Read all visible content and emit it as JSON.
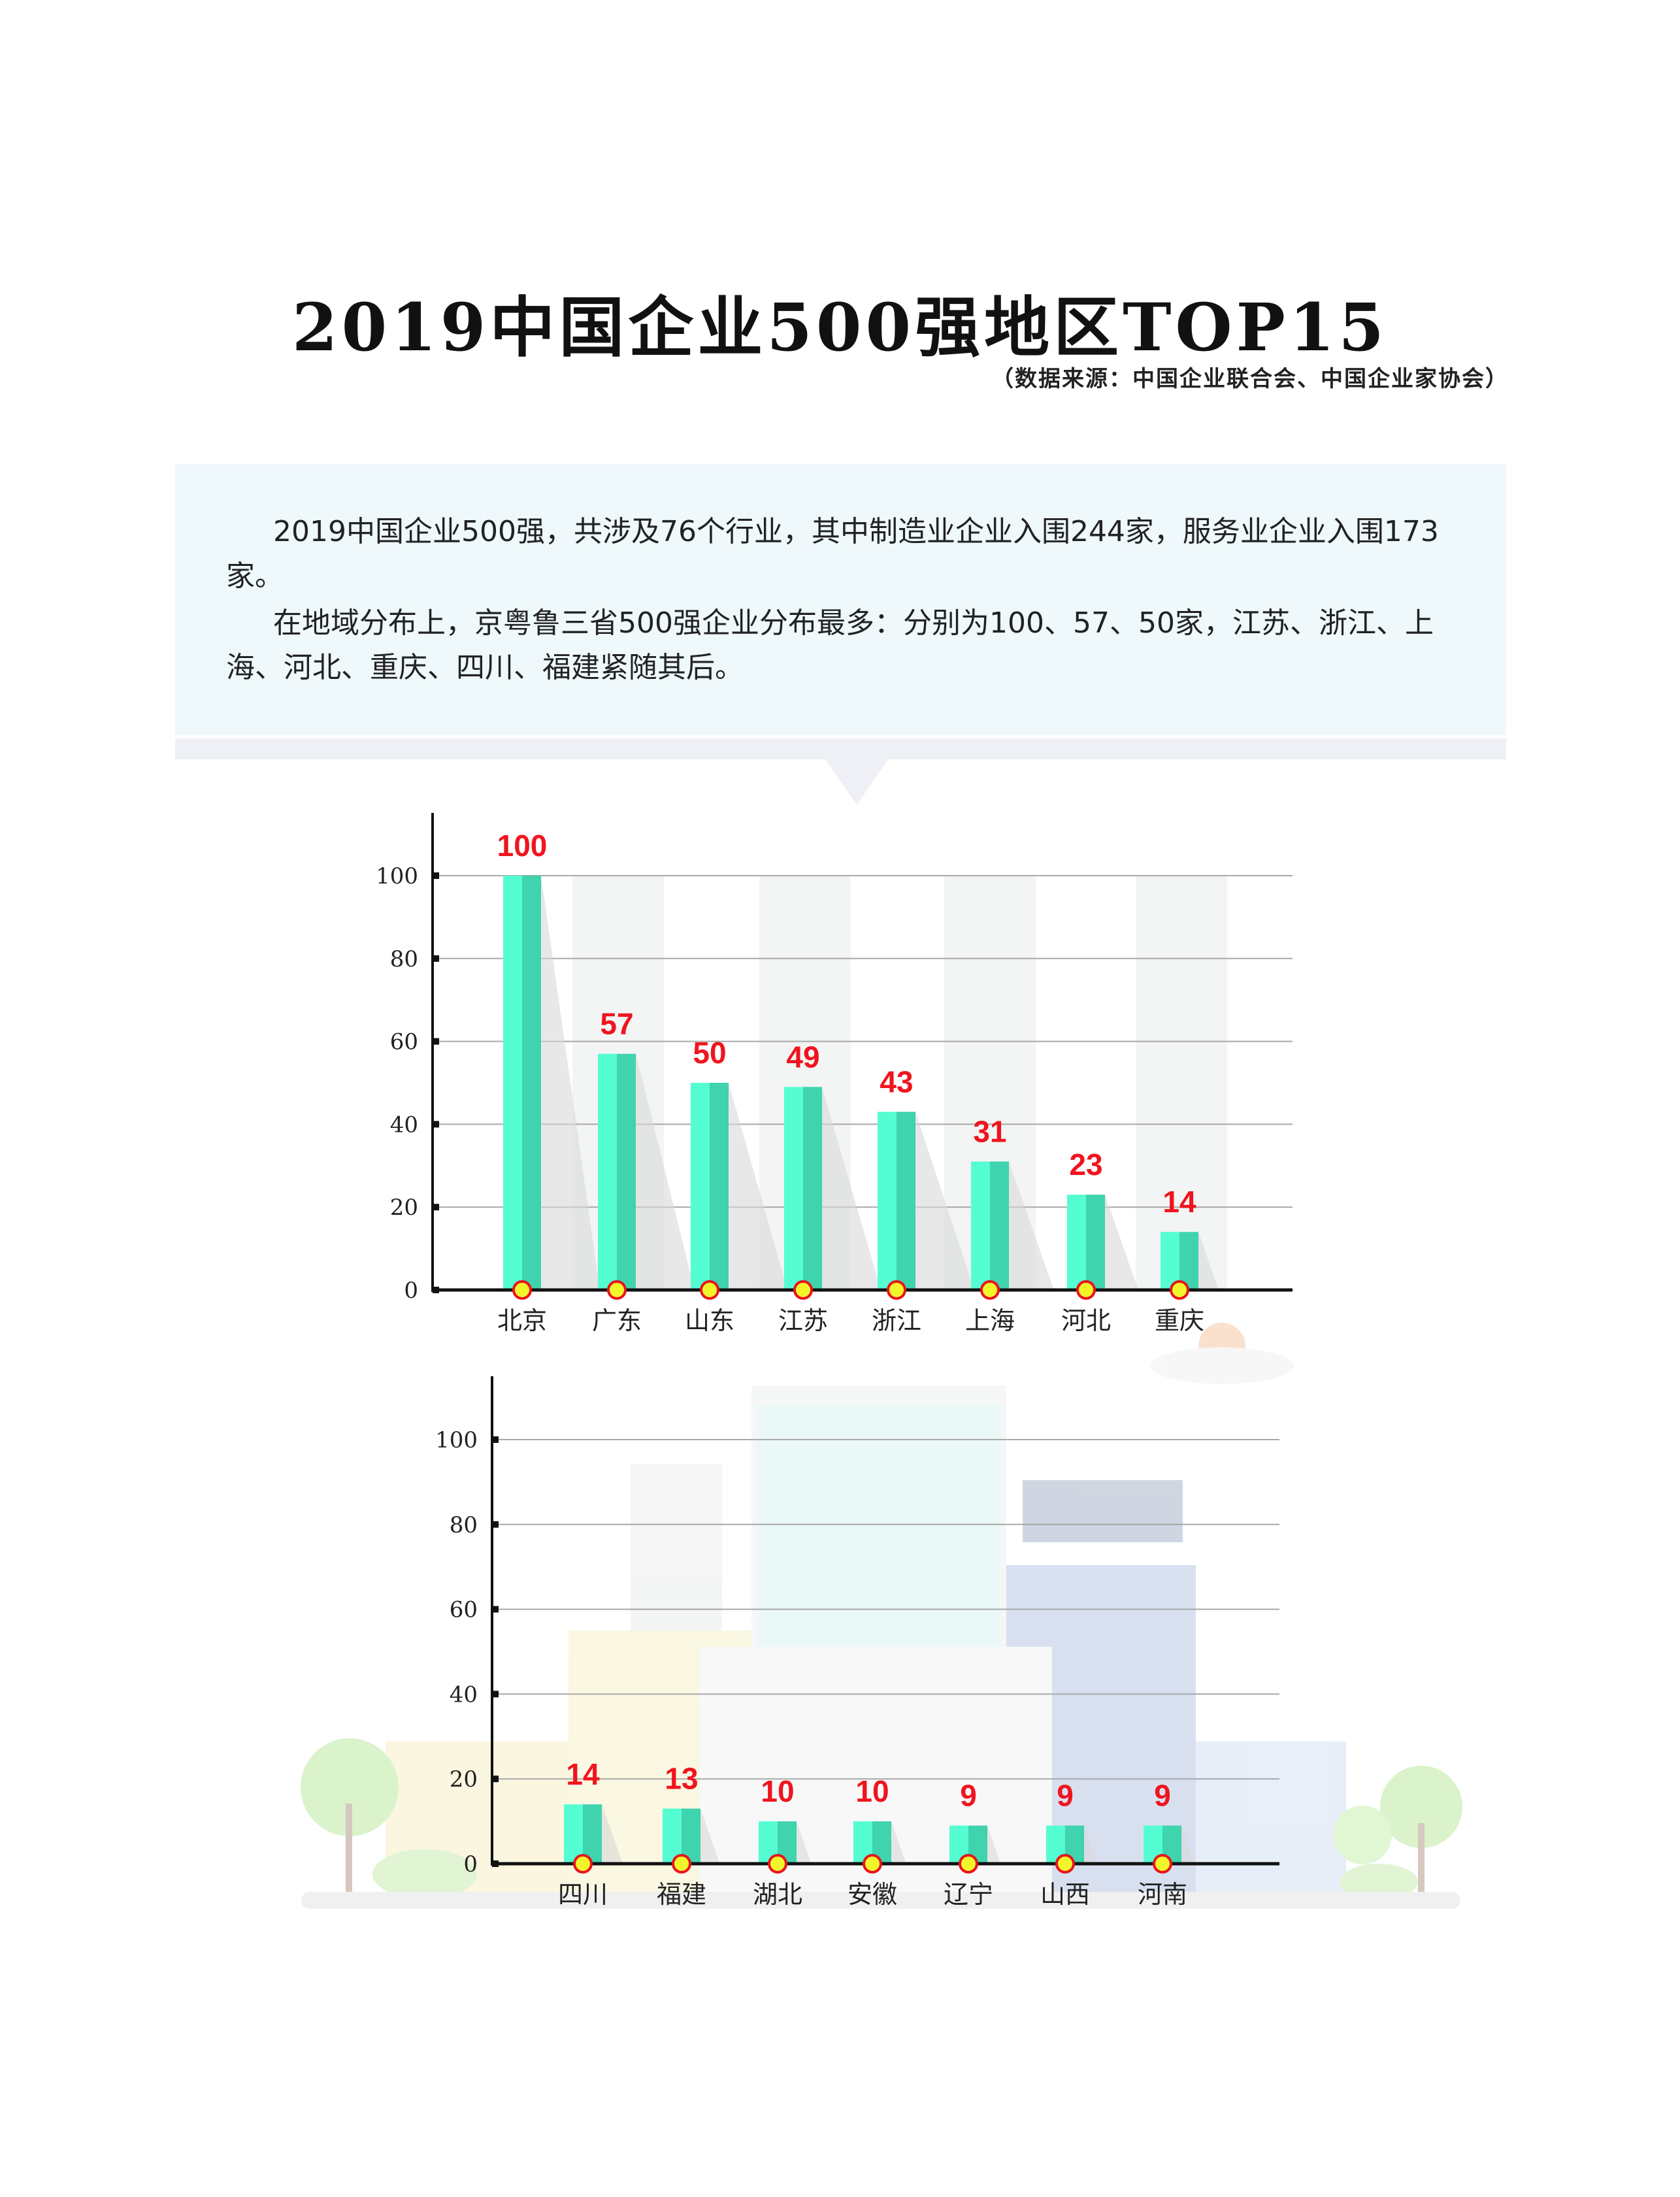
{
  "title": "2019中国企业500强地区TOP15",
  "subtitle": "（数据来源：中国企业联合会、中国企业家协会）",
  "intro": {
    "paragraph1": "2019中国企业500强，共涉及76个行业，其中制造业企业入围244家，服务业企业入围173家。",
    "paragraph2": "在地域分布上，京粤鲁三省500强企业分布最多：分别为100、57、50家，江苏、浙江、上海、河北、重庆、四川、福建紧随其后。"
  },
  "colors": {
    "bar_light": "#55fdd2",
    "bar_dark": "#3fd3ae",
    "value_label": "#f0141e",
    "marker_fill": "#f2f52a",
    "marker_stroke": "#e8141e",
    "intro_bg": "#eff8fb"
  },
  "chart_data": [
    {
      "type": "bar",
      "categories": [
        "北京",
        "广东",
        "山东",
        "江苏",
        "浙江",
        "上海",
        "河北",
        "重庆"
      ],
      "values": [
        100,
        57,
        50,
        49,
        43,
        31,
        23,
        14
      ],
      "yticks": [
        0,
        20,
        40,
        60,
        80,
        100
      ],
      "ylim": [
        0,
        100
      ],
      "grid": true
    },
    {
      "type": "bar",
      "categories": [
        "四川",
        "福建",
        "湖北",
        "安徽",
        "辽宁",
        "山西",
        "河南"
      ],
      "values": [
        14,
        13,
        10,
        10,
        9,
        9,
        9
      ],
      "yticks": [
        0,
        20,
        40,
        60,
        80,
        100
      ],
      "ylim": [
        0,
        100
      ],
      "grid": true
    }
  ]
}
